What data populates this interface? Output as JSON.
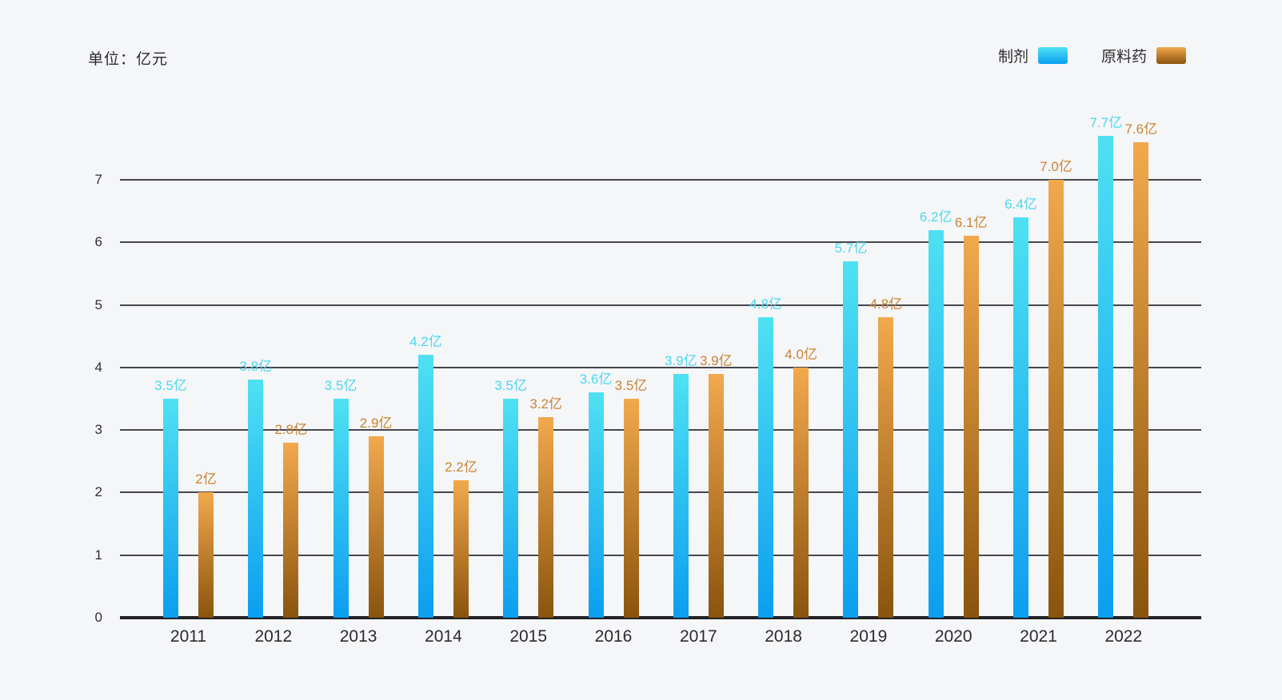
{
  "header": {
    "unit_label": "单位：亿元"
  },
  "legend": {
    "items": [
      {
        "label": "制剂"
      },
      {
        "label": "原料药"
      }
    ]
  },
  "chart_data": {
    "type": "bar",
    "title": "",
    "unit": "亿元",
    "categories": [
      "2011",
      "2012",
      "2013",
      "2014",
      "2015",
      "2016",
      "2017",
      "2018",
      "2019",
      "2020",
      "2021",
      "2022"
    ],
    "series": [
      {
        "name": "制剂",
        "values": [
          3.5,
          3.8,
          3.5,
          4.2,
          3.5,
          3.6,
          3.9,
          4.8,
          5.7,
          6.2,
          6.4,
          7.7
        ],
        "labels": [
          "3.5亿",
          "3.8亿",
          "3.5亿",
          "4.2亿",
          "3.5亿",
          "3.6亿",
          "3.9亿",
          "4.8亿",
          "5.7亿",
          "6.2亿",
          "6.4亿",
          "7.7亿"
        ],
        "color_top": "#4fe1f2",
        "color_bottom": "#0c9ef0",
        "label_color": "#4cd7ee"
      },
      {
        "name": "原料药",
        "values": [
          2,
          2.8,
          2.9,
          2.2,
          3.2,
          3.5,
          3.9,
          4.0,
          4.8,
          6.1,
          7.0,
          7.6
        ],
        "labels": [
          "2亿",
          "2.8亿",
          "2.9亿",
          "2.2亿",
          "3.2亿",
          "3.5亿",
          "3.9亿",
          "4.0亿",
          "4.8亿",
          "6.1亿",
          "7.0亿",
          "7.6亿"
        ],
        "color_top": "#f2a94d",
        "color_bottom": "#8a540d",
        "label_color": "#cb8331"
      }
    ],
    "y_ticks": [
      0,
      1,
      2,
      3,
      4,
      5,
      6,
      7
    ],
    "ylim": [
      0,
      7.8
    ],
    "grid": true,
    "grid_color": "#46464e",
    "axis_color": "#222226",
    "legend_position": "top-right",
    "background_color": "#f5f6f8"
  }
}
